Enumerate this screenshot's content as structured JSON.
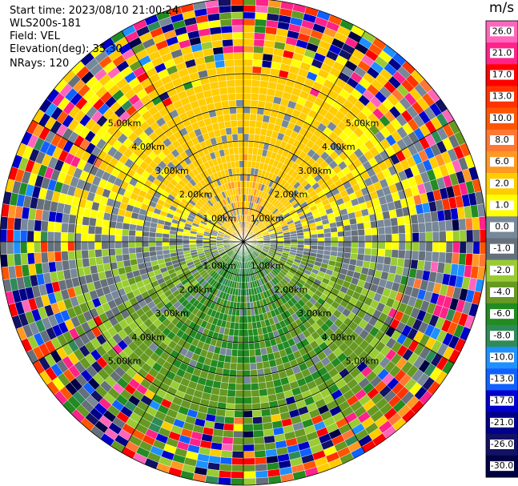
{
  "info": {
    "start_time": "Start time: 2023/08/10 21:00:24",
    "site": "WLS200s-181",
    "field": "Field: VEL",
    "elevation": "Elevation(deg): 35.30",
    "nrays": "NRays: 120"
  },
  "chart_data": {
    "type": "heatmap",
    "subtype": "polar-ppi",
    "field": "VEL",
    "nrays": 120,
    "range_rings_km": [
      1.0,
      2.0,
      3.0,
      4.0,
      5.0
    ],
    "ring_labels": [
      "1.00km",
      "2.00km",
      "3.00km",
      "4.00km",
      "5.00km"
    ],
    "colorbar": {
      "unit": "m/s",
      "ticks": [
        "26.0",
        "21.0",
        "17.0",
        "13.0",
        "10.0",
        "8.0",
        "6.0",
        "2.0",
        "1.0",
        "0.0",
        "-1.0",
        "-2.0",
        "-4.0",
        "-6.0",
        "-8.0",
        "-10.0",
        "-13.0",
        "-17.0",
        "-21.0",
        "-26.0",
        "-30.0"
      ],
      "colors": [
        "#ff66bb",
        "#ff2288",
        "#ff0000",
        "#ff3300",
        "#ff5500",
        "#ff7733",
        "#ff9922",
        "#ffcc00",
        "#ffff00",
        "#778899",
        "#66707a",
        "#99cc33",
        "#669922",
        "#228b22",
        "#2e8b57",
        "#1e90ff",
        "#1060ff",
        "#0000cd",
        "#000088",
        "#111166",
        "#000044"
      ]
    }
  }
}
